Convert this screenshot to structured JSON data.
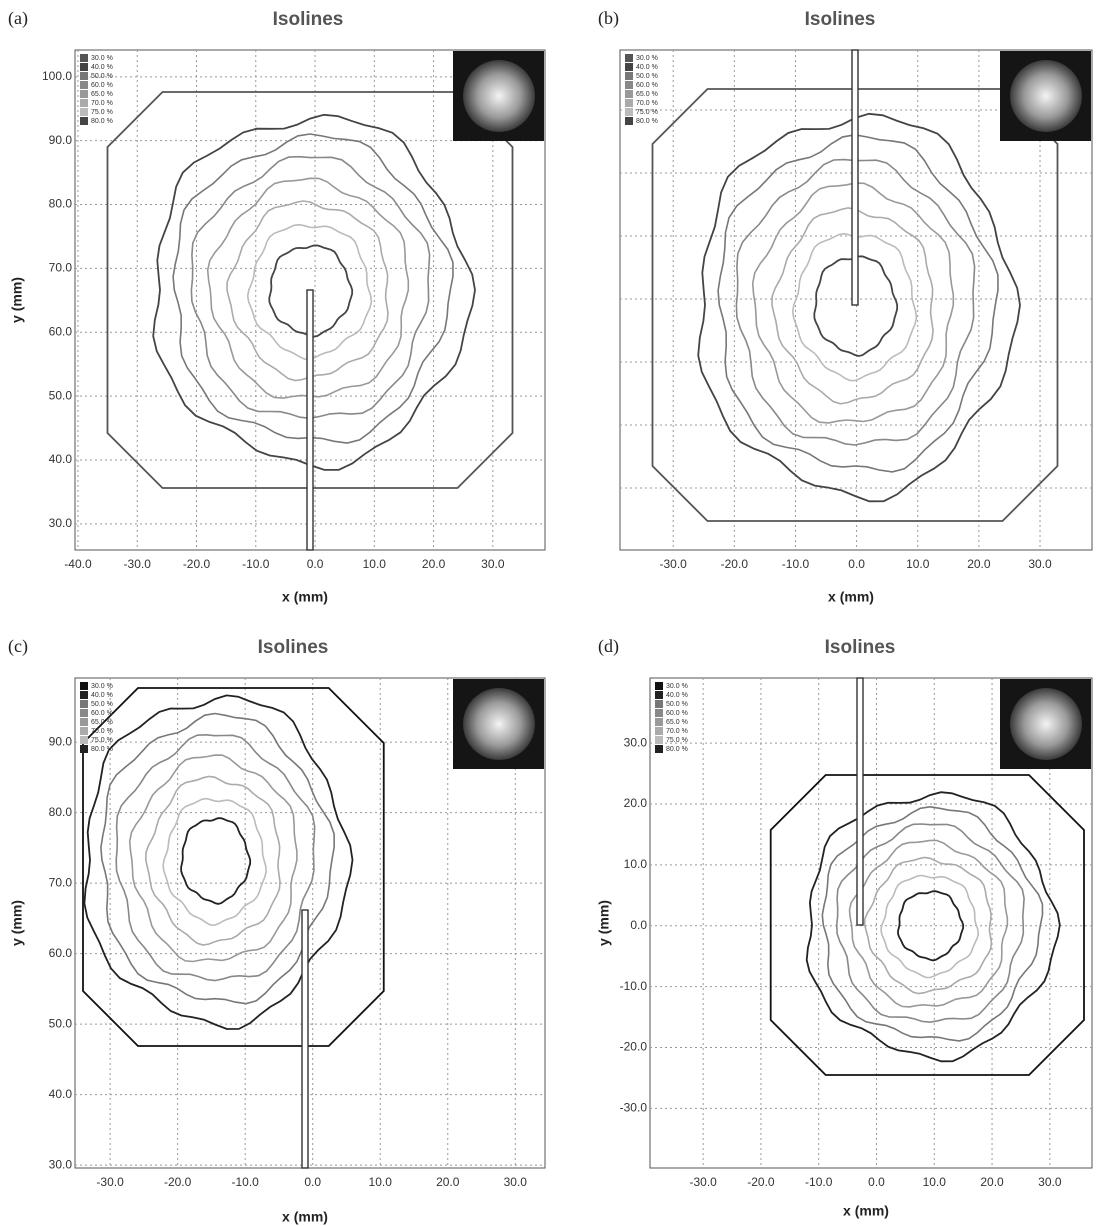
{
  "chart_data": [
    {
      "type": "contour",
      "panel_label": "(a)",
      "title": "Isolines",
      "xlabel": "x (mm)",
      "ylabel": "y (mm)",
      "xlim": [
        -40.5,
        38.8
      ],
      "ylim": [
        25.9,
        104.2
      ],
      "xticks": [
        {
          "value": -40,
          "label": "-40.0"
        },
        {
          "value": -30,
          "label": "-30.0"
        },
        {
          "value": -20,
          "label": "-20.0"
        },
        {
          "value": -10,
          "label": "-10.0"
        },
        {
          "value": 0,
          "label": "0.0"
        },
        {
          "value": 10,
          "label": "10.0"
        },
        {
          "value": 20,
          "label": "20.0"
        },
        {
          "value": 30,
          "label": "30.0"
        }
      ],
      "yticks": [
        {
          "value": 30,
          "label": "30.0"
        },
        {
          "value": 40,
          "label": "40.0"
        },
        {
          "value": 50,
          "label": "50.0"
        },
        {
          "value": 60,
          "label": "60.0"
        },
        {
          "value": 70,
          "label": "70.0"
        },
        {
          "value": 80,
          "label": "80.0"
        },
        {
          "value": 90,
          "label": "90.0"
        },
        {
          "value": 100,
          "label": "100.0"
        }
      ],
      "grid": true,
      "series": [
        {
          "name": "30.0 %",
          "color": "#555555"
        },
        {
          "name": "40.0 %",
          "color": "#444444"
        },
        {
          "name": "50.0 %",
          "color": "#777777"
        },
        {
          "name": "60.0 %",
          "color": "#888888"
        },
        {
          "name": "65.0 %",
          "color": "#999999"
        },
        {
          "name": "70.0 %",
          "color": "#aaaaaa"
        },
        {
          "name": "75.0 %",
          "color": "#bbbbbb"
        },
        {
          "name": "80.0 %",
          "color": "#444444"
        }
      ]
    },
    {
      "type": "contour",
      "panel_label": "(b)",
      "title": "Isolines",
      "xlabel": "x (mm)",
      "xlim": [
        -38.7,
        38.5
      ],
      "xticks": [
        {
          "value": -30,
          "label": "-30.0"
        },
        {
          "value": -20,
          "label": "-20.0"
        },
        {
          "value": -10,
          "label": "-10.0"
        },
        {
          "value": 0,
          "label": "0.0"
        },
        {
          "value": 10,
          "label": "10.0"
        },
        {
          "value": 20,
          "label": "20.0"
        },
        {
          "value": 30,
          "label": "30.0"
        }
      ],
      "grid": true,
      "series": [
        {
          "name": "30.0 %",
          "color": "#555555"
        },
        {
          "name": "40.0 %",
          "color": "#444444"
        },
        {
          "name": "50.0 %",
          "color": "#777777"
        },
        {
          "name": "60.0 %",
          "color": "#888888"
        },
        {
          "name": "65.0 %",
          "color": "#999999"
        },
        {
          "name": "70.0 %",
          "color": "#aaaaaa"
        },
        {
          "name": "75.0 %",
          "color": "#bbbbbb"
        },
        {
          "name": "80.0 %",
          "color": "#444444"
        }
      ]
    },
    {
      "type": "contour",
      "panel_label": "(c)",
      "title": "Isolines",
      "xlabel": "x (mm)",
      "ylabel": "y (mm)",
      "xlim": [
        -35.2,
        34.4
      ],
      "ylim": [
        29.6,
        99.1
      ],
      "xticks": [
        {
          "value": -30,
          "label": "-30.0"
        },
        {
          "value": -20,
          "label": "-20.0"
        },
        {
          "value": -10,
          "label": "-10.0"
        },
        {
          "value": 0,
          "label": "0.0"
        },
        {
          "value": 10,
          "label": "10.0"
        },
        {
          "value": 20,
          "label": "20.0"
        },
        {
          "value": 30,
          "label": "30.0"
        }
      ],
      "yticks": [
        {
          "value": 30,
          "label": "30.0"
        },
        {
          "value": 40,
          "label": "40.0"
        },
        {
          "value": 50,
          "label": "50.0"
        },
        {
          "value": 60,
          "label": "60.0"
        },
        {
          "value": 70,
          "label": "70.0"
        },
        {
          "value": 80,
          "label": "80.0"
        },
        {
          "value": 90,
          "label": "90.0"
        }
      ],
      "grid": true,
      "series": [
        {
          "name": "30.0 %",
          "color": "#111111"
        },
        {
          "name": "40.0 %",
          "color": "#222222"
        },
        {
          "name": "50.0 %",
          "color": "#777777"
        },
        {
          "name": "60.0 %",
          "color": "#888888"
        },
        {
          "name": "65.0 %",
          "color": "#999999"
        },
        {
          "name": "70.0 %",
          "color": "#aaaaaa"
        },
        {
          "name": "75.0 %",
          "color": "#bbbbbb"
        },
        {
          "name": "80.0 %",
          "color": "#222222"
        }
      ]
    },
    {
      "type": "contour",
      "panel_label": "(d)",
      "title": "Isolines",
      "xlabel": "x (mm)",
      "ylabel": "y (mm)",
      "xlim": [
        -39.2,
        37.3
      ],
      "ylim": [
        -39.8,
        40.7
      ],
      "xticks": [
        {
          "value": -30,
          "label": "-30.0"
        },
        {
          "value": -20,
          "label": "-20.0"
        },
        {
          "value": -10,
          "label": "-10.0"
        },
        {
          "value": 0,
          "label": "0.0"
        },
        {
          "value": 10,
          "label": "10.0"
        },
        {
          "value": 20,
          "label": "20.0"
        },
        {
          "value": 30,
          "label": "30.0"
        }
      ],
      "yticks": [
        {
          "value": -30,
          "label": "-30.0"
        },
        {
          "value": -20,
          "label": "-20.0"
        },
        {
          "value": -10,
          "label": "-10.0"
        },
        {
          "value": 0,
          "label": "0.0"
        },
        {
          "value": 10,
          "label": "10.0"
        },
        {
          "value": 20,
          "label": "20.0"
        },
        {
          "value": 30,
          "label": "30.0"
        }
      ],
      "grid": true,
      "series": [
        {
          "name": "30.0 %",
          "color": "#111111"
        },
        {
          "name": "40.0 %",
          "color": "#222222"
        },
        {
          "name": "50.0 %",
          "color": "#777777"
        },
        {
          "name": "60.0 %",
          "color": "#888888"
        },
        {
          "name": "65.0 %",
          "color": "#999999"
        },
        {
          "name": "70.0 %",
          "color": "#aaaaaa"
        },
        {
          "name": "75.0 %",
          "color": "#bbbbbb"
        },
        {
          "name": "80.0 %",
          "color": "#222222"
        }
      ]
    }
  ]
}
